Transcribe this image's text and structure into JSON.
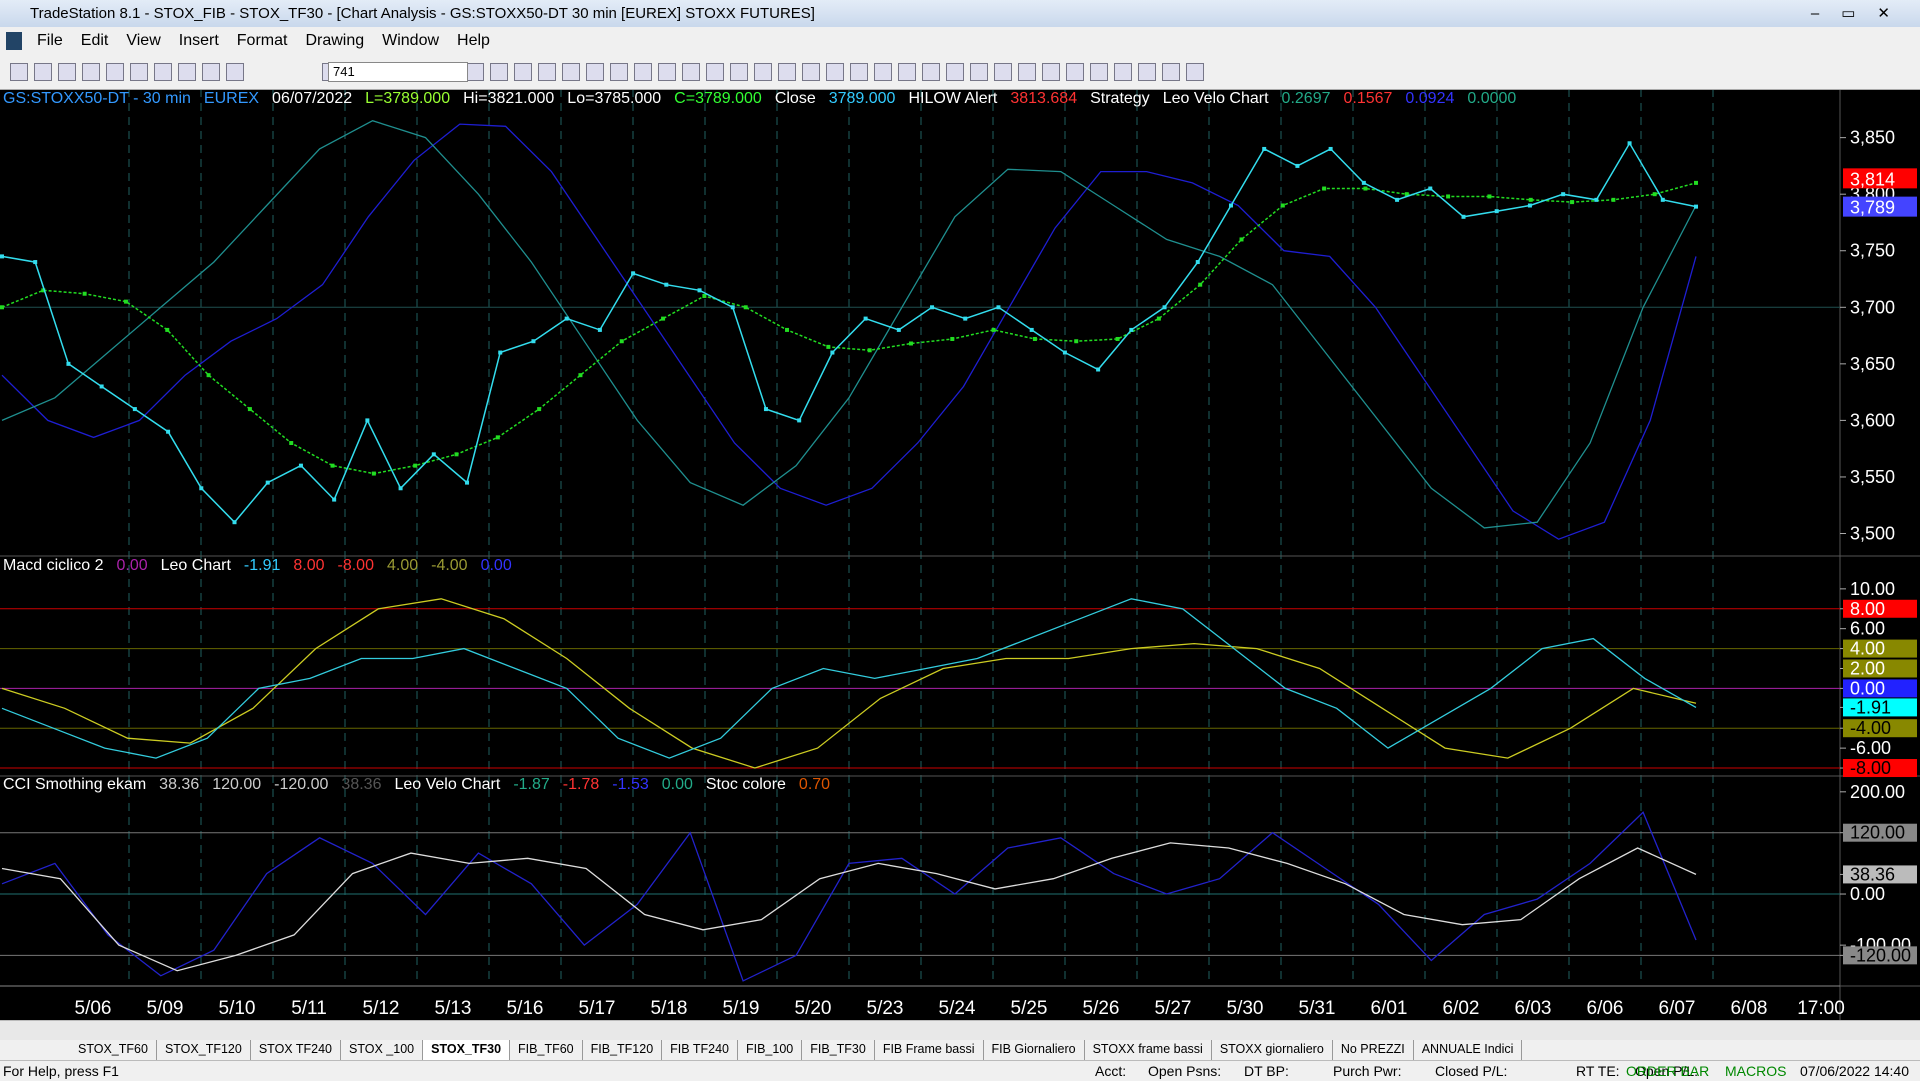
{
  "window": {
    "title": "TradeStation 8.1 - STOX_FIB - STOX_TF30 - [Chart Analysis - GS:STOXX50-DT  30 min  [EUREX] STOXX FUTURES]"
  },
  "menu": [
    "File",
    "Edit",
    "View",
    "Insert",
    "Format",
    "Drawing",
    "Window",
    "Help"
  ],
  "toolbar": {
    "combo": "741"
  },
  "price_panel": {
    "header": [
      {
        "text": "GS:STOXX50-DT - 30 min",
        "color": "#3399ff"
      },
      {
        "text": "EUREX",
        "color": "#3399ff"
      },
      {
        "text": "06/07/2022",
        "color": "#ffffff"
      },
      {
        "text": "L=3789.000",
        "color": "#99ff33"
      },
      {
        "text": "Hi=3821.000",
        "color": "#ffffff"
      },
      {
        "text": "Lo=3785.000",
        "color": "#ffffff"
      },
      {
        "text": "C=3789.000",
        "color": "#33ff33"
      },
      {
        "text": "Close",
        "color": "#ffffff"
      },
      {
        "text": "3789.000",
        "color": "#33ccff"
      },
      {
        "text": "HILOW Alert",
        "color": "#ffffff"
      },
      {
        "text": "3813.684",
        "color": "#ff3333"
      },
      {
        "text": "Strategy",
        "color": "#ffffff"
      },
      {
        "text": "Leo Velo Chart",
        "color": "#ffffff"
      },
      {
        "text": "0.2697",
        "color": "#22aa88"
      },
      {
        "text": "0.1567",
        "color": "#ff3333"
      },
      {
        "text": "0.0924",
        "color": "#3333ff"
      },
      {
        "text": "0.0000",
        "color": "#22aa88"
      }
    ],
    "ylim": [
      3481,
      3893
    ],
    "yticks": [
      {
        "value": 3850,
        "label": "3,850"
      },
      {
        "value": 3800,
        "label": "3,800"
      },
      {
        "value": 3750,
        "label": "3,750"
      },
      {
        "value": 3700,
        "label": "3,700",
        "line": "#1f4f4f"
      },
      {
        "value": 3650,
        "label": "3,650"
      },
      {
        "value": 3600,
        "label": "3,600"
      },
      {
        "value": 3550,
        "label": "3,550"
      },
      {
        "value": 3500,
        "label": "3,500"
      }
    ],
    "markers": [
      {
        "value": 3814,
        "label": "3,814",
        "bg": "#ff0000",
        "fg": "#ff0000"
      },
      {
        "value": 3789,
        "label": "3,789",
        "bg": "#4444ff",
        "fg": "#ffffff"
      }
    ],
    "series": [
      {
        "color": "#1e1ed2",
        "dots": false,
        "values": [
          3640,
          3600,
          3585,
          3600,
          3640,
          3670,
          3690,
          3720,
          3780,
          3830,
          3862,
          3860,
          3820,
          3760,
          3700,
          3640,
          3580,
          3540,
          3525,
          3540,
          3580,
          3630,
          3700,
          3770,
          3820,
          3820,
          3810,
          3790,
          3750,
          3745,
          3700,
          3640,
          3580,
          3520,
          3495,
          3510,
          3600,
          3745
        ]
      },
      {
        "color": "#1f8f8f",
        "dots": false,
        "values": [
          3600,
          3620,
          3660,
          3700,
          3740,
          3790,
          3840,
          3865,
          3850,
          3800,
          3740,
          3670,
          3600,
          3545,
          3525,
          3560,
          3620,
          3700,
          3780,
          3822,
          3820,
          3790,
          3760,
          3745,
          3720,
          3660,
          3600,
          3540,
          3505,
          3510,
          3580,
          3700,
          3790
        ]
      },
      {
        "color": "#22dd22",
        "dots": true,
        "values": [
          3700,
          3715,
          3712,
          3705,
          3680,
          3640,
          3610,
          3580,
          3560,
          3553,
          3560,
          3570,
          3585,
          3610,
          3640,
          3670,
          3690,
          3710,
          3700,
          3680,
          3665,
          3662,
          3668,
          3672,
          3680,
          3672,
          3670,
          3672,
          3690,
          3720,
          3760,
          3790,
          3805,
          3805,
          3800,
          3798,
          3798,
          3795,
          3793,
          3795,
          3800,
          3810
        ]
      },
      {
        "color": "#33ddee",
        "dots": true,
        "values": [
          3745,
          3740,
          3650,
          3630,
          3610,
          3590,
          3540,
          3510,
          3545,
          3560,
          3530,
          3600,
          3540,
          3570,
          3545,
          3660,
          3670,
          3690,
          3680,
          3730,
          3720,
          3715,
          3700,
          3610,
          3600,
          3660,
          3690,
          3680,
          3700,
          3690,
          3700,
          3680,
          3660,
          3645,
          3680,
          3700,
          3740,
          3790,
          3840,
          3825,
          3840,
          3810,
          3795,
          3805,
          3780,
          3785,
          3790,
          3800,
          3795,
          3845,
          3795,
          3789
        ]
      }
    ]
  },
  "macd_panel": {
    "header": [
      {
        "text": "Macd ciclico 2",
        "color": "#ffffff"
      },
      {
        "text": "0.00",
        "color": "#aa22aa"
      },
      {
        "text": "Leo Chart",
        "color": "#ffffff"
      },
      {
        "text": "-1.91",
        "color": "#33ccff"
      },
      {
        "text": "8.00",
        "color": "#ff3333"
      },
      {
        "text": "-8.00",
        "color": "#ff3333"
      },
      {
        "text": "4.00",
        "color": "#999933"
      },
      {
        "text": "-4.00",
        "color": "#999933"
      },
      {
        "text": "0.00",
        "color": "#3333ff"
      }
    ],
    "ylim": [
      -8.7,
      13.2
    ],
    "yticks": [
      {
        "value": 10,
        "label": "10.00"
      },
      {
        "value": 8,
        "label": "8.00",
        "bg": "#ff0000",
        "fg": "#ff0000",
        "line": "#cc0000"
      },
      {
        "value": 6,
        "label": "6.00"
      },
      {
        "value": 4,
        "label": "4.00",
        "bg": "#888800",
        "fg": "#888800",
        "line": "#666600"
      },
      {
        "value": 2,
        "label": "2.00",
        "bg": "#888800",
        "fg": "#ffffff"
      },
      {
        "value": 0,
        "label": "0.00",
        "bg": "#2222ff",
        "fg": "#2222ff",
        "line": "#aa22aa"
      },
      {
        "value": -1.91,
        "label": "-1.91",
        "bg": "#00ffff",
        "fg": "#000000"
      },
      {
        "value": -4,
        "label": "-4.00",
        "bg": "#888800",
        "fg": "#000000",
        "line": "#666600"
      },
      {
        "value": -6,
        "label": "-6.00"
      },
      {
        "value": -8,
        "label": "-8.00",
        "bg": "#ff0000",
        "fg": "#000000",
        "line": "#cc0000"
      }
    ],
    "series": [
      {
        "color": "#cccc22",
        "dots": false,
        "values": [
          0,
          -2,
          -5,
          -5.5,
          -2,
          4,
          8,
          9,
          7,
          3,
          -2,
          -6,
          -8,
          -6,
          -1,
          2,
          3,
          3,
          4,
          4.5,
          4,
          2,
          -2,
          -6,
          -7,
          -4,
          0,
          -1.5
        ]
      },
      {
        "color": "#33ccdd",
        "dots": false,
        "values": [
          -2,
          -4,
          -6,
          -7,
          -5,
          0,
          1,
          3,
          3,
          4,
          2,
          0,
          -5,
          -7,
          -5,
          0,
          2,
          1,
          2,
          3,
          5,
          7,
          9,
          8,
          4,
          0,
          -2,
          -6,
          -3,
          0,
          4,
          5,
          1,
          -1.91
        ]
      }
    ]
  },
  "cci_panel": {
    "header": [
      {
        "text": "CCI Smothing ekam",
        "color": "#ffffff"
      },
      {
        "text": "38.36",
        "color": "#cccccc"
      },
      {
        "text": "120.00",
        "color": "#cccccc"
      },
      {
        "text": "-120.00",
        "color": "#cccccc"
      },
      {
        "text": "38.36",
        "color": "#555555"
      },
      {
        "text": "Leo Velo Chart",
        "color": "#ffffff"
      },
      {
        "text": "-1.87",
        "color": "#22aa88"
      },
      {
        "text": "-1.78",
        "color": "#ff3333"
      },
      {
        "text": "-1.53",
        "color": "#3333ff"
      },
      {
        "text": "0.00",
        "color": "#22aa88"
      },
      {
        "text": "Stoc colore",
        "color": "#ffffff"
      },
      {
        "text": "0.70",
        "color": "#dd5500"
      }
    ],
    "ylim": [
      -178,
      229
    ],
    "yticks": [
      {
        "value": 200,
        "label": "200.00"
      },
      {
        "value": 120,
        "label": "120.00",
        "bg": "#888888",
        "fg": "#000000",
        "line": "#777777"
      },
      {
        "value": 38.36,
        "label": "38.36",
        "bg": "#bbbbbb",
        "fg": "#000000"
      },
      {
        "value": 0,
        "label": "0.00",
        "line": "#1f6f6f"
      },
      {
        "value": -100,
        "label": "-100.00"
      },
      {
        "value": -120,
        "label": "-120.00",
        "bg": "#888888",
        "fg": "#000000",
        "line": "#777777"
      }
    ],
    "series": [
      {
        "color": "#2222cc",
        "dots": false,
        "values": [
          20,
          60,
          -80,
          -160,
          -110,
          40,
          110,
          60,
          -40,
          80,
          20,
          -100,
          -20,
          120,
          -170,
          -120,
          60,
          70,
          0,
          90,
          110,
          40,
          0,
          30,
          120,
          50,
          -20,
          -130,
          -40,
          -10,
          60,
          160,
          -90
        ]
      },
      {
        "color": "#dddddd",
        "dots": false,
        "values": [
          50,
          30,
          -100,
          -150,
          -120,
          -80,
          40,
          80,
          60,
          70,
          50,
          -40,
          -70,
          -50,
          30,
          60,
          40,
          10,
          30,
          70,
          100,
          90,
          60,
          20,
          -40,
          -60,
          -50,
          30,
          90,
          38.36
        ]
      }
    ]
  },
  "dates": [
    "5/06",
    "5/09",
    "5/10",
    "5/11",
    "5/12",
    "5/13",
    "5/16",
    "5/17",
    "5/18",
    "5/19",
    "5/20",
    "5/23",
    "5/24",
    "5/25",
    "5/26",
    "5/27",
    "5/30",
    "5/31",
    "6/01",
    "6/02",
    "6/03",
    "6/06",
    "6/07",
    "6/08",
    "17:00"
  ],
  "tabs": [
    "STOX_TF60",
    "STOX_TF120",
    "STOX TF240",
    "STOX _100",
    "STOX_TF30",
    "FIB_TF60",
    "FIB_TF120",
    "FIB TF240",
    "FIB_100",
    "FIB_TF30",
    "FIB Frame bassi",
    "FIB Giornaliero",
    "STOXX frame bassi",
    "STOXX giornaliero",
    "No PREZZI",
    "ANNUALE Indici"
  ],
  "active_tab": 4,
  "status": {
    "help": "For Help, press F1",
    "fields": [
      "Acct:",
      "Open Psns:",
      "DT BP:",
      "Purch Pwr:",
      "Closed P/L:",
      "RT TE:",
      "Open P/L:"
    ],
    "order_bar": "ORDER BAR",
    "macros": "MACROS",
    "clock": "07/06/2022 14:40"
  }
}
